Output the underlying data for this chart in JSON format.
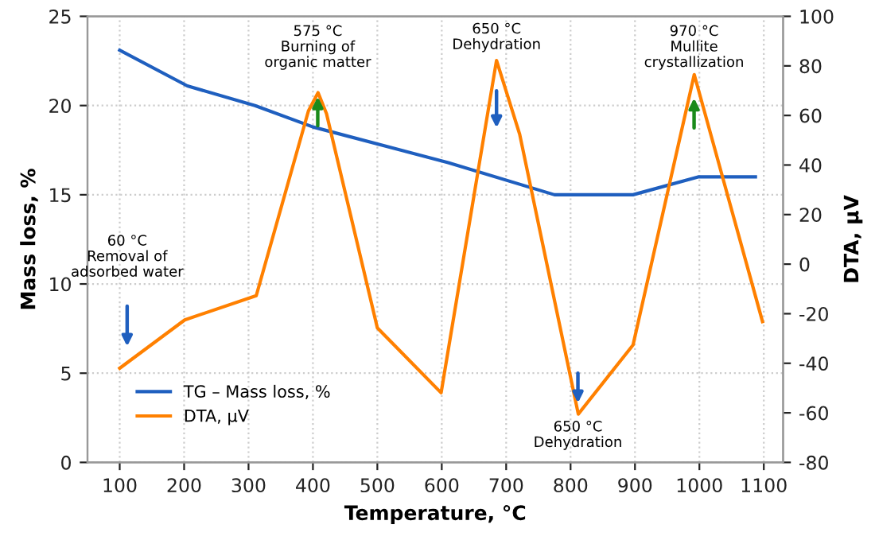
{
  "chart_data": {
    "type": "line",
    "xlabel": "Temperature, °C",
    "ylabel": "Mass loss, %",
    "y2label": "DTA, μV",
    "xlim": [
      50,
      1130
    ],
    "xticks": [
      100,
      200,
      300,
      400,
      500,
      600,
      700,
      800,
      900,
      1000,
      1100
    ],
    "ylim": [
      0,
      25
    ],
    "yticks": [
      0,
      5,
      10,
      15,
      20,
      25
    ],
    "y2lim": [
      -80,
      100
    ],
    "y2ticks": [
      -80,
      -60,
      -40,
      -20,
      0,
      20,
      40,
      60,
      80,
      100
    ],
    "grid": true,
    "legend": "bottom left",
    "series": [
      {
        "name": "TG – Mass loss, %",
        "color": "#1f5fbf",
        "x": [
          100,
          205,
          310,
          400,
          610,
          775,
          897,
          998,
          1087
        ],
        "values": [
          23.1,
          21.1,
          20.0,
          18.8,
          16.8,
          15.0,
          15.0,
          16.0,
          16.0
        ]
      },
      {
        "name": "DTA, μV",
        "color": "#ff8000",
        "axis": "y2",
        "x": [
          100,
          201,
          312,
          393,
          408,
          421,
          500,
          599,
          685,
          721,
          812,
          897,
          992,
          1098
        ],
        "values": [
          -42,
          -22.5,
          -12.7,
          61.8,
          69.2,
          60.8,
          -25.7,
          -51.9,
          82.2,
          52.4,
          -60.5,
          -32.6,
          76.5,
          -23.2
        ]
      }
    ],
    "annotations": [
      "60 °C\nRemoval of\nadsorbed water",
      "575 °C\nBurning of\norganic matter",
      "650 °C\nDehydration",
      "650 °C\nDehydration",
      "970 °C\nMullite\ncrystallization"
    ]
  }
}
